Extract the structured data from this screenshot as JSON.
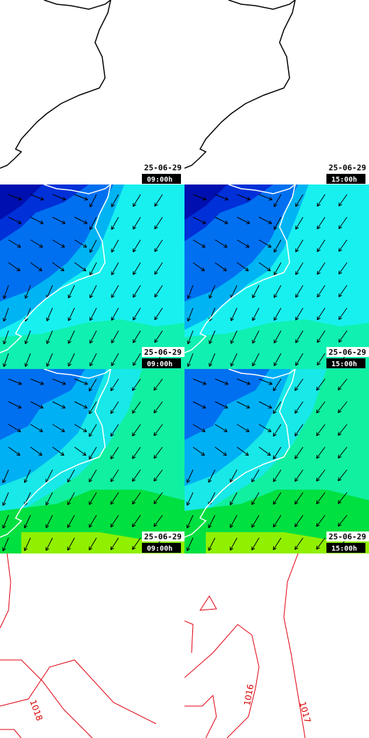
{
  "panels": [
    {
      "date": "25-06-29",
      "time": "09:00h"
    },
    {
      "date": "25-06-29",
      "time": "15:00h"
    },
    {
      "date": "25-06-29",
      "time": "09:00h"
    },
    {
      "date": "25-06-29",
      "time": "15:00h"
    },
    {
      "date": "25-06-29",
      "time": "09:00h"
    },
    {
      "date": "25-06-29",
      "time": "15:00h"
    }
  ],
  "contour_labels": [
    "1018",
    "1016",
    "1017"
  ]
}
